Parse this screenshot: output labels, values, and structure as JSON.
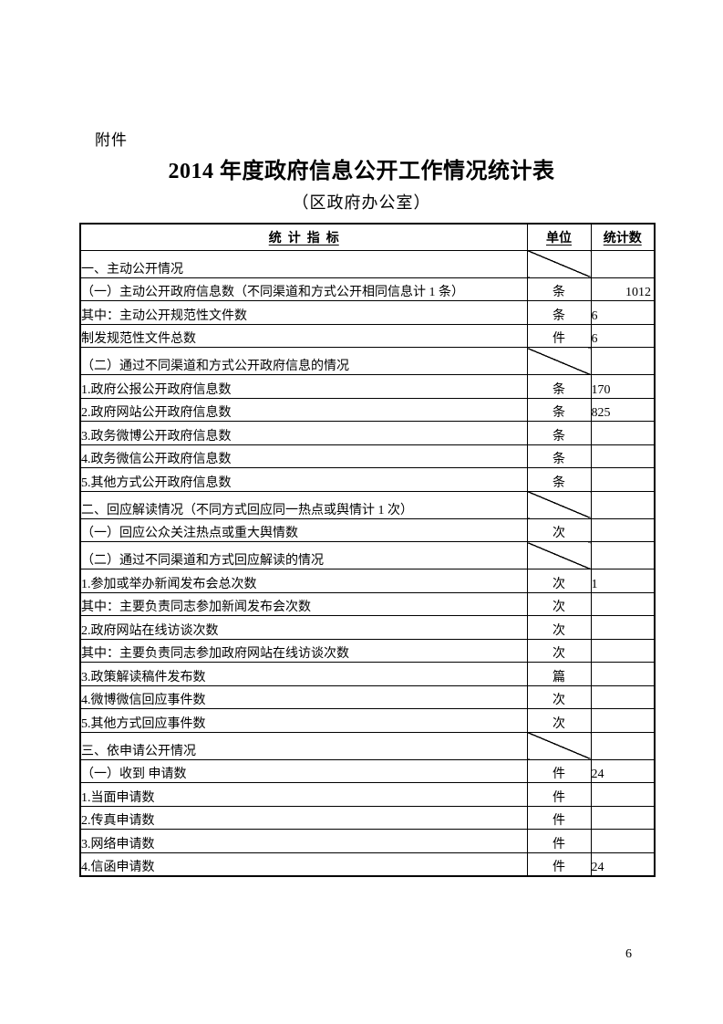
{
  "page": {
    "attachment_label": "附件",
    "title": "2014 年度政府信息公开工作情况统计表",
    "subtitle": "（区政府办公室）",
    "page_number": "6"
  },
  "colors": {
    "background": "#ffffff",
    "text": "#000000",
    "table_border": "#000000"
  },
  "table": {
    "headers": {
      "indicator": "统  计  指  标",
      "unit": "单位",
      "count": "统计数"
    },
    "rows": [
      {
        "label": "一、主动公开情况",
        "level": 0,
        "slash": true,
        "unit": "",
        "value": ""
      },
      {
        "label": "（一）主动公开政府信息数（不同渠道和方式公开相同信息计 1 条）",
        "level": 1,
        "slash": false,
        "unit": "条",
        "value": "1012",
        "value_align": "right"
      },
      {
        "label": "其中：主动公开规范性文件数",
        "level": 3,
        "slash": false,
        "unit": "条",
        "value": "6"
      },
      {
        "label": "制发规范性文件总数",
        "level": 4,
        "slash": false,
        "unit": "件",
        "value": "6"
      },
      {
        "label": "（二）通过不同渠道和方式公开政府信息的情况",
        "level": 1,
        "slash": true,
        "unit": "",
        "value": ""
      },
      {
        "label": "1.政府公报公开政府信息数",
        "level": 2,
        "slash": false,
        "unit": "条",
        "value": "170"
      },
      {
        "label": "2.政府网站公开政府信息数",
        "level": 2,
        "slash": false,
        "unit": "条",
        "value": "825"
      },
      {
        "label": "3.政务微博公开政府信息数",
        "level": 2,
        "slash": false,
        "unit": "条",
        "value": ""
      },
      {
        "label": "4.政务微信公开政府信息数",
        "level": 2,
        "slash": false,
        "unit": "条",
        "value": ""
      },
      {
        "label": "5.其他方式公开政府信息数",
        "level": 2,
        "slash": false,
        "unit": "条",
        "value": ""
      },
      {
        "label": "二、回应解读情况（不同方式回应同一热点或舆情计 1 次）",
        "level": 0,
        "slash": true,
        "unit": "",
        "value": ""
      },
      {
        "label": "（一）回应公众关注热点或重大舆情数",
        "level": 1,
        "slash": false,
        "unit": "次",
        "value": ""
      },
      {
        "label": "（二）通过不同渠道和方式回应解读的情况",
        "level": 1,
        "slash": true,
        "unit": "",
        "value": ""
      },
      {
        "label": "1.参加或举办新闻发布会总次数",
        "level": 2,
        "slash": false,
        "unit": "次",
        "value": "1"
      },
      {
        "label": "其中：主要负责同志参加新闻发布会次数",
        "level": 3,
        "slash": false,
        "unit": "次",
        "value": ""
      },
      {
        "label": "2.政府网站在线访谈次数",
        "level": 2,
        "slash": false,
        "unit": "次",
        "value": ""
      },
      {
        "label": "其中：主要负责同志参加政府网站在线访谈次数",
        "level": 3,
        "slash": false,
        "unit": "次",
        "value": ""
      },
      {
        "label": "3.政策解读稿件发布数",
        "level": 2,
        "slash": false,
        "unit": "篇",
        "value": ""
      },
      {
        "label": "4.微博微信回应事件数",
        "level": 2,
        "slash": false,
        "unit": "次",
        "value": ""
      },
      {
        "label": "5.其他方式回应事件数",
        "level": 2,
        "slash": false,
        "unit": "次",
        "value": ""
      },
      {
        "label": "三、依申请公开情况",
        "level": 0,
        "slash": true,
        "unit": "",
        "value": ""
      },
      {
        "label": "（一）收到 申请数",
        "level": 1,
        "slash": false,
        "unit": "件",
        "value": "24"
      },
      {
        "label": "1.当面申请数",
        "level": 2,
        "slash": false,
        "unit": "件",
        "value": ""
      },
      {
        "label": "2.传真申请数",
        "level": 2,
        "slash": false,
        "unit": "件",
        "value": ""
      },
      {
        "label": "3.网络申请数",
        "level": 2,
        "slash": false,
        "unit": "件",
        "value": ""
      },
      {
        "label": "4.信函申请数",
        "level": 2,
        "slash": false,
        "unit": "件",
        "value": "24"
      }
    ]
  }
}
